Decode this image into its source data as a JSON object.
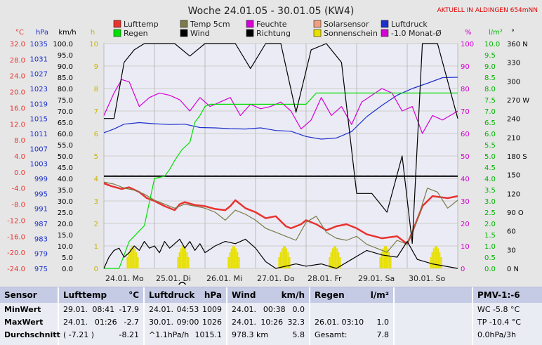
{
  "chart_data": {
    "type": "line",
    "title": "Woche 24.01.05 - 30.01.05 (KW4)",
    "notice": "AKTUELL IN ALDINGEN 654mNN",
    "x_labels": [
      "24.01. Mo",
      "25.01. Di",
      "26.01. Mi",
      "27.01. Do",
      "28.01. Fr",
      "29.01. Sa",
      "30.01. So"
    ],
    "left_axes": [
      {
        "unit": "°C",
        "color": "#e8332f",
        "ticks": [
          "32.0",
          "28.0",
          "24.0",
          "20.0",
          "16.0",
          "12.0",
          "8.0",
          "4.0",
          "0.0",
          "-4.0",
          "-8.0",
          "-12.0",
          "-16.0",
          "-20.0",
          "-24.0"
        ]
      },
      {
        "unit": "hPa",
        "color": "#1c2fcc",
        "ticks": [
          "1035",
          "1031",
          "1027",
          "1023",
          "1019",
          "1015",
          "1011",
          "1007",
          "1003",
          "999",
          "995",
          "991",
          "987",
          "983",
          "979",
          "975"
        ]
      },
      {
        "unit": "km/h",
        "color": "#000000",
        "ticks": [
          "100.0",
          "95.0",
          "90.0",
          "85.0",
          "80.0",
          "75.0",
          "70.0",
          "65.0",
          "60.0",
          "55.0",
          "50.0",
          "45.0",
          "40.0",
          "35.0",
          "30.0",
          "25.0",
          "20.0",
          "15.0",
          "10.0",
          "5.0",
          "0.0"
        ]
      },
      {
        "unit": "h",
        "color": "#c8b400",
        "ticks": [
          "10",
          "9",
          "8",
          "7",
          "6",
          "5",
          "4",
          "3",
          "2",
          "1",
          "0"
        ]
      }
    ],
    "right_axes": [
      {
        "unit": "%",
        "color": "#d400d4",
        "ticks": [
          "100",
          "90",
          "80",
          "70",
          "60",
          "50",
          "40",
          "30",
          "20",
          "10",
          "0"
        ]
      },
      {
        "unit": "l/m²",
        "color": "#00b400",
        "ticks": [
          "10.0",
          "9.5",
          "9.0",
          "8.5",
          "8.0",
          "7.5",
          "7.0",
          "6.5",
          "6.0",
          "5.5",
          "5.0",
          "4.5",
          "4.0",
          "3.5",
          "3.0",
          "2.5",
          "2.0",
          "1.5",
          "1.0",
          "0.5",
          "0.0"
        ]
      },
      {
        "unit": "°",
        "color": "#000000",
        "ticks": [
          "360 N",
          "330",
          "300",
          "270 W",
          "240",
          "210",
          "180 S",
          "150",
          "120",
          "90 O",
          "60",
          "30",
          "0 N"
        ]
      }
    ],
    "legend": [
      {
        "label": "Lufttemp",
        "color": "#e8332f"
      },
      {
        "label": "Regen",
        "color": "#00e000"
      },
      {
        "label": "Temp 5cm",
        "color": "#7a7a4a"
      },
      {
        "label": "Wind",
        "color": "#000000"
      },
      {
        "label": "Feuchte",
        "color": "#d400d4"
      },
      {
        "label": "Richtung",
        "color": "#000000"
      },
      {
        "label": "Solarsensor",
        "color": "#f0a080"
      },
      {
        "label": "Sonnenschein",
        "color": "#e8e000"
      },
      {
        "label": "Luftdruck",
        "color": "#1c2fcc"
      },
      {
        "label": "-1.0 Monat-Ø",
        "color": "#d400d4"
      }
    ],
    "series": [
      {
        "name": "Lufttemp",
        "unit": "°C",
        "color": "#e8332f",
        "x": [
          0,
          0.15,
          0.35,
          0.5,
          0.7,
          0.85,
          1,
          1.2,
          1.4,
          1.5,
          1.6,
          1.8,
          2,
          2.2,
          2.4,
          2.5,
          2.6,
          2.8,
          3,
          3.2,
          3.4,
          3.6,
          3.7,
          3.9,
          4,
          4.2,
          4.4,
          4.5,
          4.6,
          4.8,
          5,
          5.2,
          5.5,
          5.8,
          6,
          6.1,
          6.3,
          6.5,
          6.8,
          7
        ],
        "values": [
          -2.8,
          -3.5,
          -4.2,
          -3.8,
          -5,
          -6.5,
          -7.2,
          -8.5,
          -9.5,
          -8,
          -7.5,
          -8.2,
          -8.5,
          -9.2,
          -9.5,
          -8.5,
          -7,
          -9,
          -10,
          -11.5,
          -11,
          -13.5,
          -14,
          -13,
          -12,
          -13,
          -14.5,
          -14,
          -13.5,
          -13,
          -14,
          -15.5,
          -16.5,
          -16,
          -17.9,
          -15,
          -8.5,
          -6,
          -6.5,
          -6
        ]
      },
      {
        "name": "Temp 5cm",
        "unit": "°C",
        "color": "#7a7a4a",
        "x": [
          0,
          0.2,
          0.4,
          0.6,
          0.8,
          1,
          1.2,
          1.4,
          1.6,
          1.8,
          2,
          2.2,
          2.4,
          2.6,
          2.8,
          3,
          3.2,
          3.4,
          3.6,
          3.8,
          4,
          4.2,
          4.4,
          4.6,
          4.8,
          5,
          5.2,
          5.4,
          5.6,
          5.8,
          6,
          6.2,
          6.4,
          6.6,
          6.8,
          7
        ],
        "values": [
          -2.5,
          -3,
          -4,
          -4.5,
          -5.5,
          -7,
          -8,
          -9,
          -8,
          -8.5,
          -9,
          -10,
          -12,
          -9.5,
          -10.5,
          -12,
          -14,
          -15,
          -16,
          -17,
          -12.5,
          -11,
          -15,
          -16.5,
          -17,
          -16,
          -18,
          -19,
          -20,
          -17,
          -18,
          -12,
          -4,
          -5,
          -9,
          -7
        ]
      },
      {
        "name": "Luftdruck",
        "unit": "hPa",
        "color": "#1c2fcc",
        "x": [
          0,
          0.2,
          0.4,
          0.7,
          1,
          1.3,
          1.6,
          1.9,
          2.2,
          2.5,
          2.8,
          3.1,
          3.4,
          3.7,
          4,
          4.3,
          4.6,
          4.9,
          5.2,
          5.5,
          5.8,
          6.1,
          6.4,
          6.7,
          7
        ],
        "values": [
          1011.2,
          1012.2,
          1013.5,
          1013.9,
          1013.6,
          1013.4,
          1013.5,
          1012.6,
          1012.5,
          1012.3,
          1012.2,
          1012.5,
          1011.8,
          1011.6,
          1010.2,
          1009.5,
          1009.8,
          1011.5,
          1015.5,
          1018.5,
          1021.2,
          1023.0,
          1024.4,
          1025.9,
          1026
        ]
      },
      {
        "name": "Feuchte",
        "unit": "%",
        "color": "#d400d4",
        "x": [
          0,
          0.2,
          0.35,
          0.5,
          0.7,
          0.9,
          1.1,
          1.3,
          1.5,
          1.7,
          1.9,
          2.1,
          2.3,
          2.5,
          2.7,
          2.9,
          3.1,
          3.3,
          3.5,
          3.7,
          3.9,
          4.1,
          4.3,
          4.5,
          4.7,
          4.9,
          5.1,
          5.3,
          5.5,
          5.7,
          5.9,
          6.1,
          6.3,
          6.5,
          6.7,
          7
        ],
        "values": [
          68,
          78,
          84,
          83,
          72,
          76,
          78,
          77,
          75,
          70,
          76,
          72,
          74,
          76,
          68,
          73,
          71,
          72,
          74,
          70,
          62,
          66,
          76,
          68,
          72,
          64,
          74,
          77,
          80,
          78,
          70,
          72,
          60,
          68,
          66,
          70
        ]
      },
      {
        "name": "Regen",
        "unit": "l/m²",
        "color": "#00e000",
        "x": [
          0,
          0.3,
          0.5,
          0.8,
          1,
          1.2,
          1.3,
          1.4,
          1.55,
          1.7,
          1.8,
          1.9,
          2.0,
          2.1,
          2.2,
          2.4,
          2.6,
          3,
          3.5,
          4,
          4.2,
          4.5,
          5,
          5.5,
          6,
          6.5,
          7
        ],
        "values": [
          0,
          0,
          1.2,
          1.9,
          4.0,
          4.1,
          4.4,
          4.8,
          5.3,
          5.6,
          6.5,
          6.8,
          7.2,
          7.3,
          7.3,
          7.3,
          7.3,
          7.3,
          7.3,
          7.3,
          7.8,
          7.8,
          7.8,
          7.8,
          7.8,
          7.8,
          7.8
        ]
      },
      {
        "name": "Wind",
        "unit": "km/h",
        "color": "#000000",
        "x": [
          0,
          0.1,
          0.2,
          0.3,
          0.4,
          0.5,
          0.6,
          0.7,
          0.8,
          0.9,
          1,
          1.1,
          1.2,
          1.3,
          1.4,
          1.5,
          1.6,
          1.7,
          1.8,
          1.9,
          2,
          2.2,
          2.4,
          2.6,
          2.8,
          3,
          3.2,
          3.4,
          3.6,
          3.8,
          4,
          4.3,
          4.6,
          4.9,
          5.2,
          5.5,
          5.8,
          6,
          6.2,
          6.5,
          7
        ],
        "values": [
          0,
          5,
          8,
          9,
          5,
          7,
          10,
          8,
          12,
          9,
          10,
          7,
          12,
          9,
          11,
          13,
          9,
          12,
          8,
          11,
          7,
          10,
          12,
          11,
          13,
          9,
          3,
          0,
          1,
          2,
          1,
          2,
          0,
          4,
          8,
          6,
          5,
          12,
          4,
          2,
          0
        ]
      },
      {
        "name": "Richtung",
        "unit": "°",
        "color": "#000000",
        "x": [
          0,
          0.2,
          0.4,
          0.6,
          0.8,
          1.1,
          1.4,
          1.7,
          2,
          2.3,
          2.6,
          2.9,
          3.2,
          3.5,
          3.8,
          4.1,
          4.4,
          4.7,
          5,
          5.3,
          5.6,
          5.9,
          6.1,
          6.3,
          6.6,
          7
        ],
        "values": [
          240,
          240,
          330,
          350,
          360,
          360,
          360,
          340,
          360,
          360,
          360,
          320,
          360,
          360,
          250,
          350,
          360,
          330,
          120,
          120,
          90,
          180,
          40,
          360,
          360,
          240
        ]
      }
    ],
    "sunshine_hours_per_day": [
      1.0,
      1.0,
      1.0,
      1.0,
      1.0,
      1.0,
      1.0
    ],
    "reference_lines": [
      {
        "name": "-1.0 Monat-Ø",
        "unit": "°C",
        "value": -1.0,
        "color": "#8a4a4a",
        "dashed": true
      },
      {
        "name": "wind_mean",
        "unit": "km/h",
        "value": 41,
        "color": "#000000",
        "dashed": false
      }
    ],
    "ylim_temp": [
      -24,
      32
    ],
    "ylim_pressure": [
      975,
      1035
    ],
    "ylim_wind": [
      0,
      100
    ],
    "ylim_humidity": [
      0,
      100
    ],
    "ylim_rain": [
      0,
      10
    ],
    "ylim_direction": [
      0,
      360
    ],
    "grid": true
  },
  "stats": {
    "sensor": {
      "header": "Sensor",
      "rows": [
        "MinWert",
        "MaxWert",
        "Durchschnitt"
      ]
    },
    "lufttemp": {
      "header": "Lufttemp",
      "unit": "°C",
      "rows": [
        [
          "29.01.",
          "08:41",
          "-17.9"
        ],
        [
          "24.01.",
          "01:26",
          "-2.7"
        ],
        [
          "( -7.21 )",
          "",
          "-8.21"
        ]
      ]
    },
    "luftdruck": {
      "header": "Luftdruck",
      "unit": "hPa",
      "rows": [
        [
          "24.01.",
          "04:53",
          "1009"
        ],
        [
          "30.01.",
          "09:00",
          "1026"
        ],
        [
          "^1.1hPa/h",
          "",
          "1015.1"
        ]
      ]
    },
    "wind": {
      "header": "Wind",
      "unit": "km/h",
      "rows": [
        [
          "24.01.",
          "00:38",
          "0.0"
        ],
        [
          "24.01.",
          "10:26",
          "32.3"
        ],
        [
          "978.3 km",
          "",
          "5.8"
        ]
      ]
    },
    "regen": {
      "header": "Regen",
      "unit": "l/m²",
      "rows": [
        [
          "",
          ""
        ],
        [
          "26.01.  03:10",
          "1.0"
        ],
        [
          "Gesamt:",
          "7.8"
        ]
      ]
    },
    "pmv": {
      "header": "PMV-1:-6",
      "rows": [
        "WC -5.8 °C",
        "TP -10.4 °C",
        "0.0hPa/3h"
      ]
    }
  }
}
